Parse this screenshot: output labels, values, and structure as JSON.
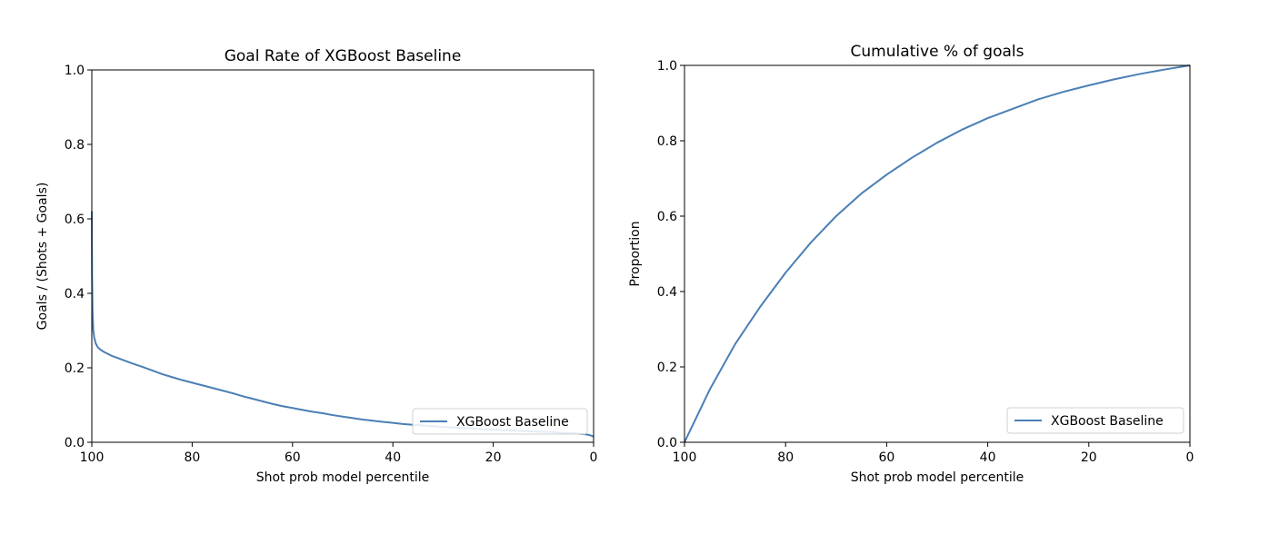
{
  "colors": {
    "series": "#4a7fb5",
    "axis": "#000000",
    "legend_border": "#d0d0d0"
  },
  "chart_data": [
    {
      "type": "line",
      "title": "Goal Rate of XGBoost Baseline",
      "xlabel": "Shot prob model percentile",
      "ylabel": "Goals / (Shots + Goals)",
      "xlim": [
        100,
        0
      ],
      "ylim": [
        0,
        1.0
      ],
      "x_ticks": [
        100,
        80,
        60,
        40,
        20,
        0
      ],
      "y_ticks": [
        0.0,
        0.2,
        0.4,
        0.6,
        0.8,
        1.0
      ],
      "x_tick_labels": [
        "100",
        "80",
        "60",
        "40",
        "20",
        "0"
      ],
      "y_tick_labels": [
        "0.0",
        "0.2",
        "0.4",
        "0.6",
        "0.8",
        "1.0"
      ],
      "grid": false,
      "legend": "lower-right",
      "series": [
        {
          "name": "XGBoost Baseline",
          "x": [
            100,
            99.95,
            99.85,
            99.7,
            99.5,
            99.2,
            98.8,
            98.2,
            97.5,
            96,
            94,
            92,
            90,
            88,
            86,
            84,
            82,
            80,
            78,
            76,
            74,
            72,
            70,
            68,
            66,
            64,
            62,
            60,
            58,
            56,
            54,
            52,
            50,
            48,
            46,
            44,
            42,
            40,
            38,
            36,
            34,
            32,
            30,
            28,
            26,
            24,
            22,
            20,
            18,
            16,
            14,
            12,
            10,
            8,
            6,
            4,
            2,
            1,
            0.5,
            0
          ],
          "y": [
            0.62,
            0.45,
            0.35,
            0.3,
            0.28,
            0.265,
            0.255,
            0.248,
            0.242,
            0.232,
            0.222,
            0.212,
            0.203,
            0.193,
            0.183,
            0.175,
            0.167,
            0.16,
            0.153,
            0.146,
            0.139,
            0.132,
            0.124,
            0.117,
            0.11,
            0.103,
            0.097,
            0.092,
            0.087,
            0.082,
            0.078,
            0.073,
            0.069,
            0.065,
            0.061,
            0.058,
            0.055,
            0.052,
            0.049,
            0.047,
            0.045,
            0.043,
            0.041,
            0.04,
            0.038,
            0.037,
            0.035,
            0.034,
            0.033,
            0.032,
            0.03,
            0.029,
            0.028,
            0.027,
            0.025,
            0.024,
            0.022,
            0.02,
            0.018,
            0.015
          ]
        }
      ]
    },
    {
      "type": "line",
      "title": "Cumulative % of goals",
      "xlabel": "Shot prob model percentile",
      "ylabel": "Proportion",
      "xlim": [
        100,
        0
      ],
      "ylim": [
        0,
        1.0
      ],
      "x_ticks": [
        100,
        80,
        60,
        40,
        20,
        0
      ],
      "y_ticks": [
        0.0,
        0.2,
        0.4,
        0.6,
        0.8,
        1.0
      ],
      "x_tick_labels": [
        "100",
        "80",
        "60",
        "40",
        "20",
        "0"
      ],
      "y_tick_labels": [
        "0.0",
        "0.2",
        "0.4",
        "0.6",
        "0.8",
        "1.0"
      ],
      "grid": false,
      "legend": "lower-right",
      "series": [
        {
          "name": "XGBoost Baseline",
          "x": [
            100,
            95,
            90,
            85,
            80,
            75,
            70,
            65,
            60,
            55,
            50,
            45,
            40,
            35,
            30,
            25,
            20,
            15,
            10,
            5,
            0
          ],
          "y": [
            0.0,
            0.14,
            0.26,
            0.36,
            0.45,
            0.53,
            0.6,
            0.66,
            0.71,
            0.755,
            0.795,
            0.83,
            0.86,
            0.885,
            0.91,
            0.93,
            0.947,
            0.963,
            0.977,
            0.989,
            1.0
          ]
        }
      ]
    }
  ]
}
